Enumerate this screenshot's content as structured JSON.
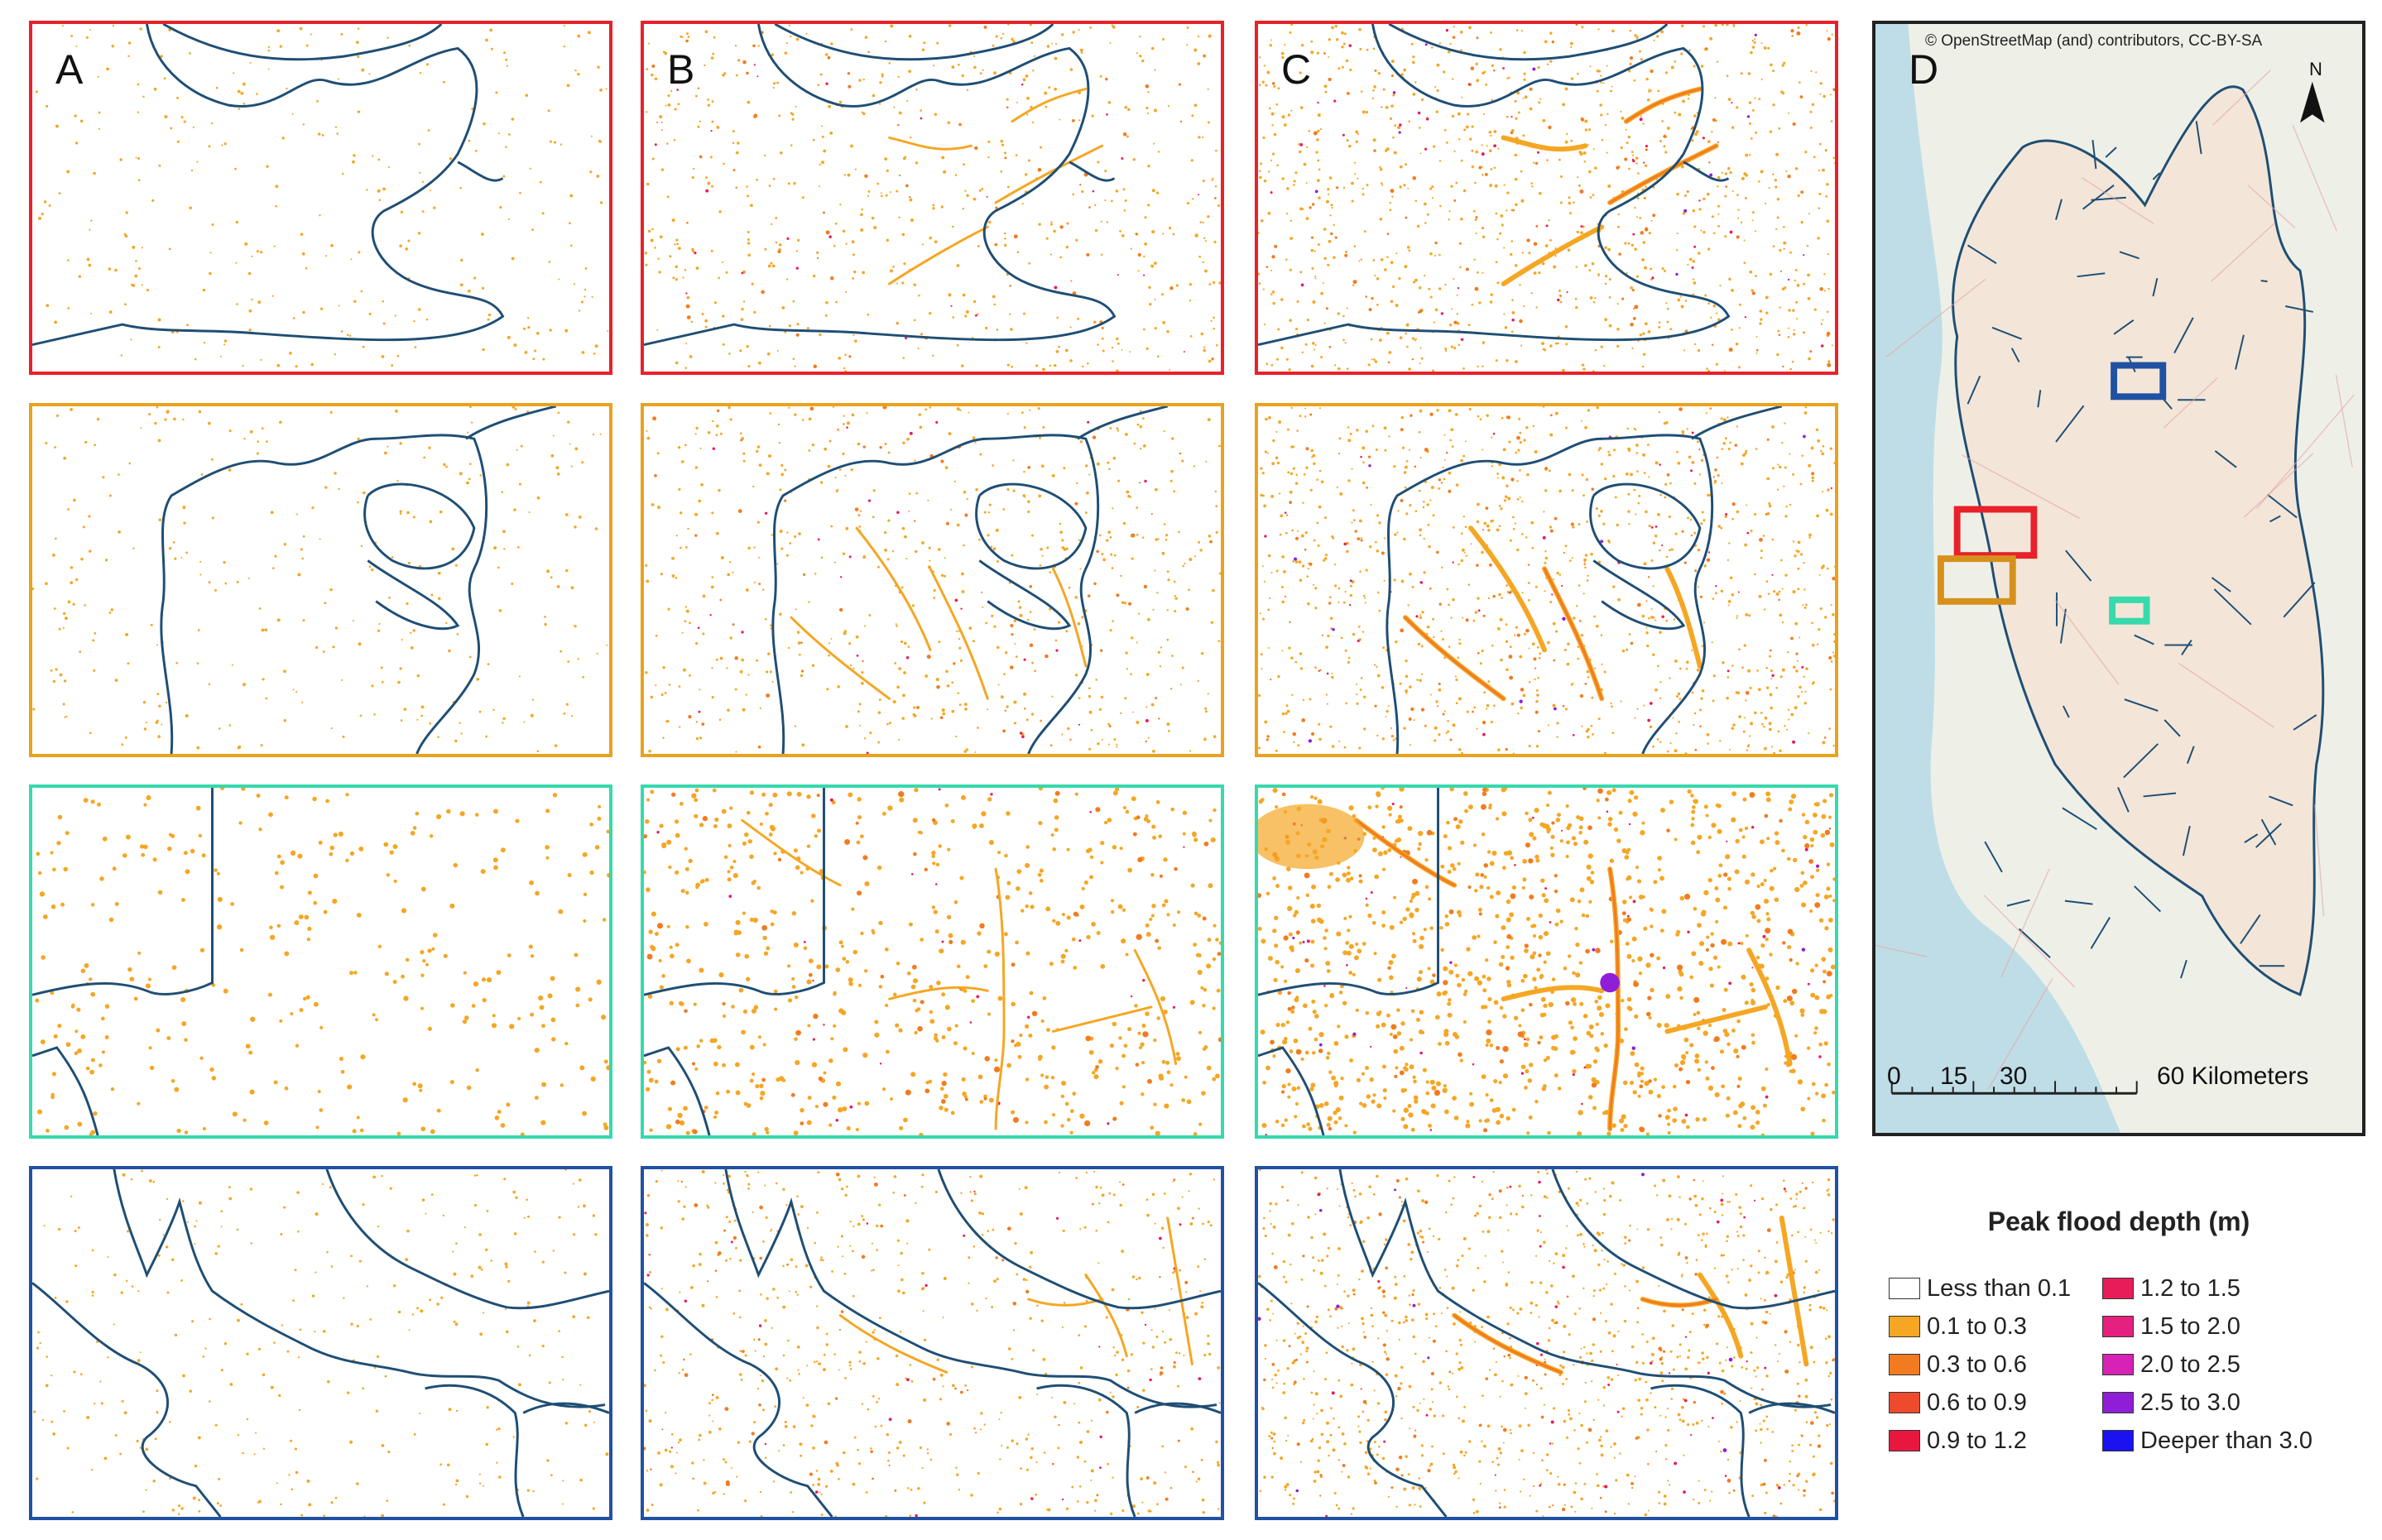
{
  "panels": {
    "label_a": "A",
    "label_b": "B",
    "label_c": "C",
    "label_d": "D"
  },
  "rows": [
    {
      "id": "row1",
      "frame_color": "#e8212a",
      "region": "red"
    },
    {
      "id": "row2",
      "frame_color": "#e9a21e",
      "region": "orange"
    },
    {
      "id": "row3",
      "frame_color": "#37d9ad",
      "region": "teal"
    },
    {
      "id": "row4",
      "frame_color": "#2151a2",
      "region": "blue"
    }
  ],
  "overview_map": {
    "attribution": "© OpenStreetMap (and) contributors, CC-BY-SA",
    "north_label": "N",
    "scale_ticks": [
      "0",
      "15",
      "30"
    ],
    "scale_last": "60 Kilometers",
    "inset_boxes": [
      {
        "name": "red-box",
        "color": "#e8212a"
      },
      {
        "name": "orange-box",
        "color": "#d6911c"
      },
      {
        "name": "teal-box",
        "color": "#37d9ad"
      },
      {
        "name": "blue-box",
        "color": "#2151a2"
      }
    ]
  },
  "legend": {
    "title": "Peak flood depth (m)",
    "items": [
      {
        "label": "Less than 0.1",
        "color": "#ffffff"
      },
      {
        "label": "0.1 to 0.3",
        "color": "#f5a623"
      },
      {
        "label": "0.3 to 0.6",
        "color": "#f27b1f"
      },
      {
        "label": "0.6 to 0.9",
        "color": "#ee4a2d"
      },
      {
        "label": "0.9 to 1.2",
        "color": "#e9173f"
      },
      {
        "label": "1.2 to 1.5",
        "color": "#e81c58"
      },
      {
        "label": "1.5 to 2.0",
        "color": "#e6207f"
      },
      {
        "label": "2.0 to 2.5",
        "color": "#d622b5"
      },
      {
        "label": "2.5 to 3.0",
        "color": "#8e1fd6"
      },
      {
        "label": "Deeper than 3.0",
        "color": "#1a12f0"
      }
    ]
  },
  "colors": {
    "boundary": "#1f4e74",
    "flood_light": "#f5a623",
    "flood_mid": "#f27b1f",
    "flood_deep": "#e81c58",
    "flood_deepest": "#8e1fd6"
  }
}
